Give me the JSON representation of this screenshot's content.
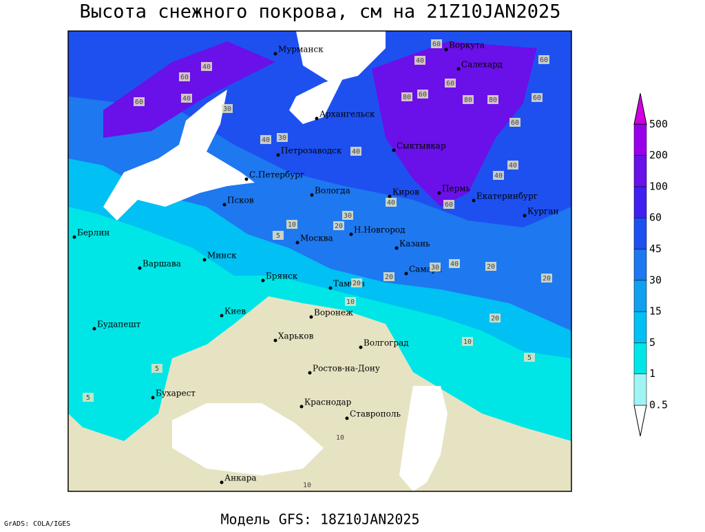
{
  "header": {
    "title": "Высота снежного покрова, см на 21Z10JAN2025"
  },
  "footer": {
    "model": "Модель GFS: 18Z10JAN2025",
    "credit": "GrADS: COLA/IGES"
  },
  "legend": {
    "levels": [
      0.5,
      1,
      5,
      15,
      30,
      45,
      60,
      100,
      200,
      500
    ],
    "colors": [
      "#ffffff",
      "#a0f4f4",
      "#00e6e6",
      "#00c0f4",
      "#10a0f0",
      "#1e78f0",
      "#1e50f0",
      "#4020f0",
      "#6a10e8",
      "#9800ec",
      "#d000e0"
    ]
  },
  "cities": [
    "Мурманск",
    "Воркута",
    "Салехард",
    "Архангельск",
    "Сыктывкар",
    "Петрозаводск",
    "С.Петербург",
    "Вологда",
    "Киров",
    "Пермь",
    "Екатеринбург",
    "Курган",
    "Псков",
    "Берлин",
    "Н.Новгород",
    "Москва",
    "Казань",
    "Минск",
    "Варшава",
    "Самара",
    "Брянск",
    "Тамбов",
    "Киев",
    "Воронеж",
    "Будапешт",
    "Харьков",
    "Волгоград",
    "Ростов-на-Дону",
    "Бухарест",
    "Краснодар",
    "Ставрополь",
    "Анкара"
  ],
  "contour_labels": [
    40,
    60,
    40,
    60,
    60,
    60,
    30,
    40,
    40,
    40,
    60,
    80,
    60,
    80,
    80,
    60,
    60,
    40,
    40,
    60,
    40,
    30,
    10,
    20,
    30,
    5,
    20,
    30,
    40,
    20,
    20,
    20,
    10,
    20,
    10,
    5,
    5,
    5,
    10,
    10
  ]
}
